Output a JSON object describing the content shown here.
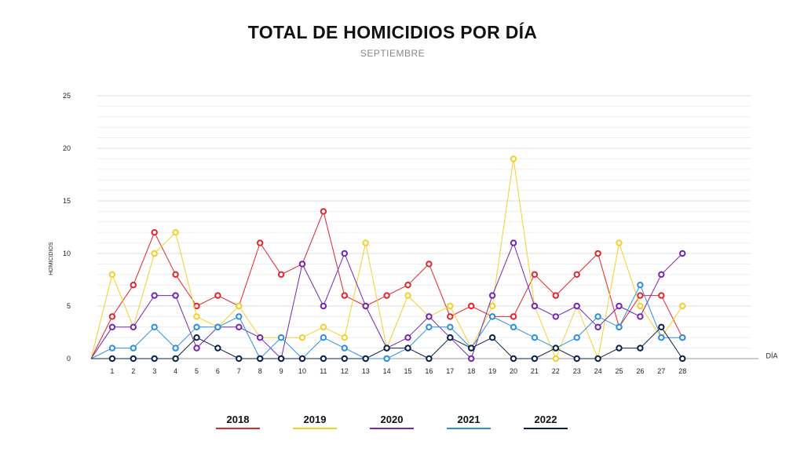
{
  "title": "TOTAL DE HOMICIDIOS POR DÍA",
  "subtitle": "SEPTIEMBRE",
  "chart_data": {
    "type": "line",
    "title": "TOTAL DE HOMICIDIOS POR DÍA",
    "subtitle": "SEPTIEMBRE",
    "xlabel": "DÍA",
    "ylabel": "HOMICIDIOS",
    "x": [
      0,
      1,
      2,
      3,
      4,
      5,
      6,
      7,
      8,
      9,
      10,
      11,
      12,
      13,
      14,
      15,
      16,
      17,
      18,
      19,
      20,
      21,
      22,
      23,
      24,
      25,
      26,
      27,
      28
    ],
    "x_tick_labels": [
      "1",
      "2",
      "3",
      "4",
      "5",
      "6",
      "7",
      "8",
      "9",
      "10",
      "11",
      "12",
      "13",
      "14",
      "15",
      "16",
      "17",
      "18",
      "19",
      "20",
      "21",
      "22",
      "23",
      "24",
      "25",
      "26",
      "27",
      "28"
    ],
    "y_ticks": [
      "0",
      "5",
      "10",
      "15",
      "20",
      "25"
    ],
    "ylim": [
      0,
      25
    ],
    "grid": true,
    "legend_position": "bottom",
    "series": [
      {
        "name": "2018",
        "color": "#e0262b",
        "values": [
          0,
          4,
          7,
          12,
          8,
          5,
          6,
          5,
          11,
          8,
          9,
          14,
          6,
          5,
          6,
          7,
          9,
          4,
          5,
          4,
          4,
          8,
          6,
          8,
          10,
          3,
          6,
          6,
          2
        ]
      },
      {
        "name": "2019",
        "color": "#f2d02c",
        "values": [
          0,
          8,
          3,
          10,
          12,
          4,
          3,
          5,
          2,
          2,
          2,
          3,
          2,
          11,
          1,
          6,
          4,
          5,
          1,
          5,
          19,
          5,
          0,
          5,
          0,
          11,
          5,
          2,
          5
        ]
      },
      {
        "name": "2020",
        "color": "#7326b5",
        "values": [
          0,
          3,
          3,
          6,
          6,
          1,
          3,
          3,
          2,
          0,
          9,
          5,
          10,
          5,
          1,
          2,
          4,
          2,
          0,
          6,
          11,
          5,
          4,
          5,
          3,
          5,
          4,
          8,
          10
        ]
      },
      {
        "name": "2021",
        "color": "#2b8fe0",
        "values": [
          0,
          1,
          1,
          3,
          1,
          3,
          3,
          4,
          0,
          2,
          0,
          2,
          1,
          0,
          0,
          1,
          3,
          3,
          1,
          4,
          3,
          2,
          1,
          2,
          4,
          3,
          7,
          2,
          2
        ]
      },
      {
        "name": "2022",
        "color": "#0d2147",
        "values": [
          0,
          0,
          0,
          0,
          0,
          2,
          1,
          0,
          0,
          0,
          0,
          0,
          0,
          0,
          1,
          1,
          0,
          2,
          1,
          2,
          0,
          0,
          1,
          0,
          0,
          1,
          1,
          3,
          0
        ]
      }
    ]
  }
}
